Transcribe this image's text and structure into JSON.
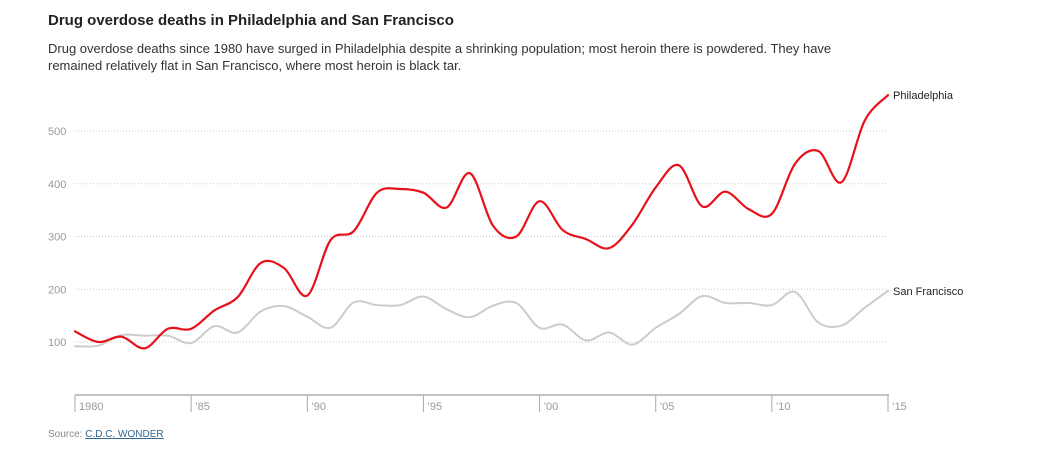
{
  "header": {
    "title": "Drug overdose deaths in Philadelphia and San Francisco",
    "subtitle": "Drug overdose deaths since 1980 have surged in Philadelphia despite a shrinking population; most heroin there is powdered. They have remained relatively flat in San Francisco, where most heroin is black tar."
  },
  "footer": {
    "source_label": "Source:",
    "source_link": "C.D.C. WONDER"
  },
  "chart_data": {
    "type": "line",
    "title": "Drug overdose deaths in Philadelphia and San Francisco",
    "xlabel": "",
    "ylabel": "",
    "ylim": [
      0,
      570
    ],
    "xlim": [
      1980,
      2015
    ],
    "grid": true,
    "y_ticks": [
      100,
      200,
      300,
      400,
      500
    ],
    "y_tick_labels": [
      "100",
      "200",
      "300",
      "400",
      "500"
    ],
    "x_ticks": [
      1980,
      1985,
      1990,
      1995,
      2000,
      2005,
      2010,
      2015
    ],
    "x_tick_labels": [
      "1980",
      "’85",
      "’90",
      "’95",
      "’00",
      "’05",
      "’10",
      "’15"
    ],
    "x": [
      1980,
      1981,
      1982,
      1983,
      1984,
      1985,
      1986,
      1987,
      1988,
      1989,
      1990,
      1991,
      1992,
      1993,
      1994,
      1995,
      1996,
      1997,
      1998,
      1999,
      2000,
      2001,
      2002,
      2003,
      2004,
      2005,
      2006,
      2007,
      2008,
      2009,
      2010,
      2011,
      2012,
      2013,
      2014,
      2015
    ],
    "series": [
      {
        "name": "Philadelphia",
        "color": "#e8111a",
        "values": [
          120,
          100,
          110,
          88,
          125,
          125,
          160,
          185,
          250,
          240,
          188,
          293,
          310,
          383,
          390,
          383,
          355,
          420,
          320,
          300,
          367,
          312,
          295,
          278,
          323,
          393,
          435,
          357,
          385,
          352,
          343,
          438,
          462,
          403,
          520,
          568
        ]
      },
      {
        "name": "San Francisco",
        "color": "#cccccc",
        "values": [
          92,
          93,
          113,
          112,
          112,
          98,
          130,
          118,
          158,
          168,
          148,
          127,
          175,
          170,
          170,
          186,
          162,
          147,
          169,
          174,
          127,
          133,
          103,
          118,
          95,
          127,
          153,
          187,
          174,
          174,
          170,
          195,
          137,
          131,
          165,
          197
        ]
      }
    ]
  }
}
